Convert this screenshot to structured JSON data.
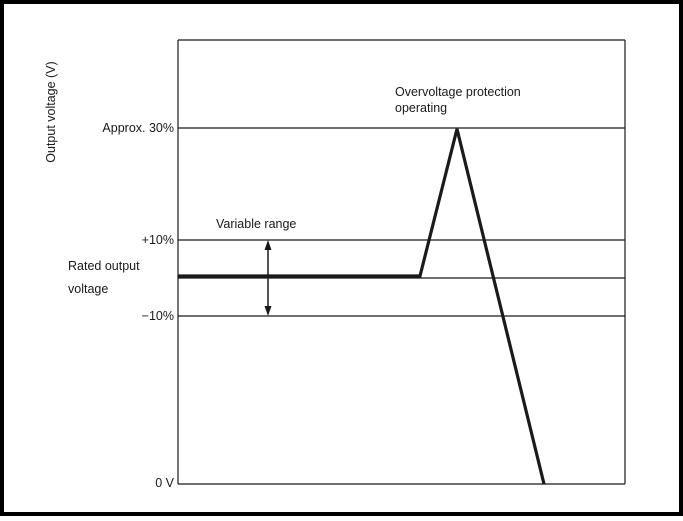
{
  "axis": {
    "y_label": "Output voltage (V)"
  },
  "levels": {
    "approx_30": "Approx. 30%",
    "plus_10": "+10%",
    "rated_line1": "Rated output",
    "rated_line2": "voltage",
    "minus_10": "−10%",
    "zero": "0 V"
  },
  "annotations": {
    "variable_range": "Variable range",
    "ovp_line1": "Overvoltage protection",
    "ovp_line2": "operating"
  },
  "colors": {
    "line": "#1a1a1a",
    "border": "#000000",
    "background": "#ffffff"
  }
}
